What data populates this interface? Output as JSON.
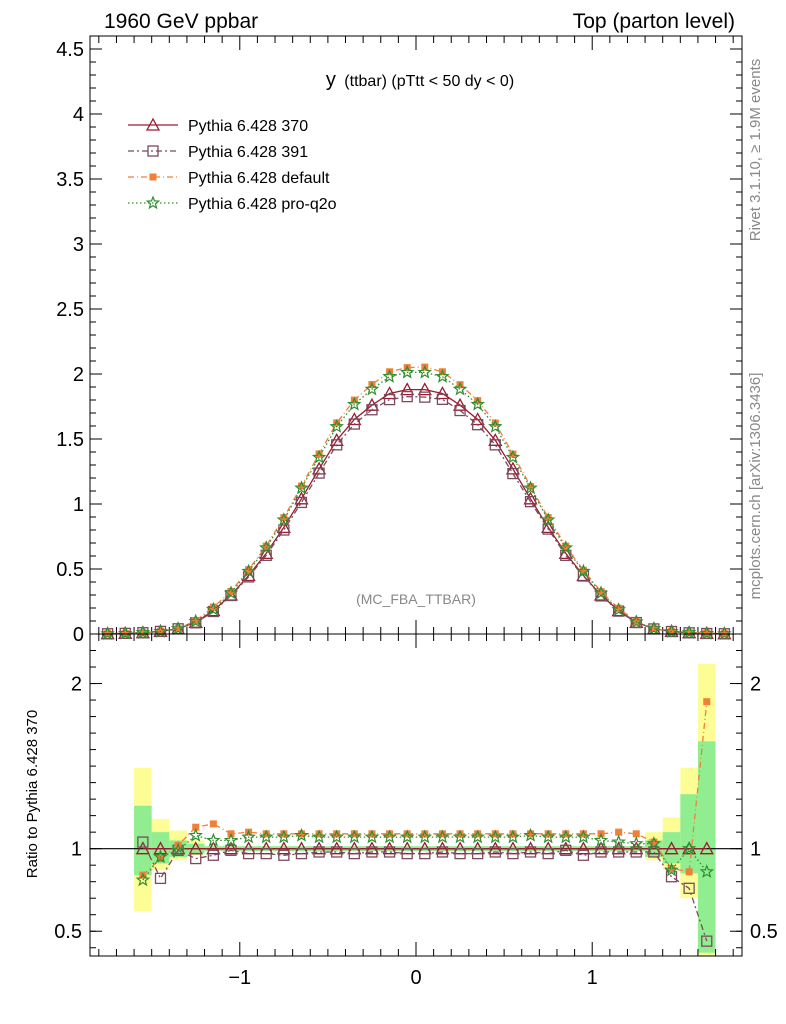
{
  "header": {
    "left": "1960 GeV ppbar",
    "right": "Top (parton level)"
  },
  "side_labels": {
    "rivet": "Rivet 3.1.10, ≥ 1.9M events",
    "mcplots": "mcplots.cern.ch [arXiv:1306.3436]"
  },
  "chart_data": {
    "type": "line",
    "title": "y (ttbar) (pTtt < 50 dy < 0)",
    "title_main": "y",
    "title_sub": "(ttbar) (pTtt < 50 dy < 0)",
    "watermark": "(MC_FBA_TTBAR)",
    "xlim": [
      -1.85,
      1.85
    ],
    "x_ticks": [
      -1,
      0,
      1
    ],
    "x_tick_labels": [
      "−1",
      "0",
      "1"
    ],
    "main": {
      "ylim": [
        0,
        4.6
      ],
      "y_ticks": [
        0,
        0.5,
        1,
        1.5,
        2,
        2.5,
        3,
        3.5,
        4,
        4.5
      ],
      "y_tick_labels": [
        "0",
        "0.5",
        "1",
        "1.5",
        "2",
        "2.5",
        "3",
        "3.5",
        "4",
        "4.5"
      ]
    },
    "ratio": {
      "ylabel": "Ratio to Pythia 6.428 370",
      "ylim": [
        0.35,
        2.3
      ],
      "y_ticks": [
        0.5,
        1,
        2
      ],
      "y_tick_labels": [
        "0.5",
        "1",
        "2"
      ]
    },
    "x": [
      -1.75,
      -1.65,
      -1.55,
      -1.45,
      -1.35,
      -1.25,
      -1.15,
      -1.05,
      -0.95,
      -0.85,
      -0.75,
      -0.65,
      -0.55,
      -0.45,
      -0.35,
      -0.25,
      -0.15,
      -0.05,
      0.05,
      0.15,
      0.25,
      0.35,
      0.45,
      0.55,
      0.65,
      0.75,
      0.85,
      0.95,
      1.05,
      1.15,
      1.25,
      1.35,
      1.45,
      1.55,
      1.65,
      1.75
    ],
    "band": {
      "x": [
        -1.55,
        -1.45,
        -1.35,
        -1.25,
        1.35,
        1.45,
        1.55,
        1.65
      ],
      "green": [
        [
          0.84,
          1.26
        ],
        [
          0.91,
          1.1
        ],
        [
          0.95,
          1.05
        ],
        [
          0.97,
          1.03
        ],
        [
          0.95,
          1.05
        ],
        [
          0.91,
          1.1
        ],
        [
          0.85,
          1.33
        ],
        [
          0.37,
          1.65
        ]
      ],
      "yellow": [
        [
          0.62,
          1.49
        ],
        [
          0.87,
          1.18
        ],
        [
          0.93,
          1.11
        ],
        [
          0.96,
          1.05
        ],
        [
          0.93,
          1.1
        ],
        [
          0.87,
          1.19
        ],
        [
          0.7,
          1.49
        ],
        [
          0.0,
          2.12
        ]
      ]
    },
    "series": [
      {
        "name": "Pythia 6.428 370",
        "color": "#9b1b30",
        "marker": "triangle-open",
        "dash": "",
        "values": [
          0.002,
          0.005,
          0.01,
          0.02,
          0.04,
          0.09,
          0.18,
          0.3,
          0.45,
          0.62,
          0.82,
          1.04,
          1.27,
          1.49,
          1.65,
          1.76,
          1.85,
          1.88,
          1.88,
          1.85,
          1.76,
          1.65,
          1.49,
          1.27,
          1.04,
          0.82,
          0.62,
          0.45,
          0.3,
          0.18,
          0.09,
          0.04,
          0.02,
          0.01,
          0.005,
          0.002
        ],
        "ratio": [
          null,
          null,
          1.0,
          1.0,
          1.0,
          1.0,
          1.0,
          1.0,
          1.0,
          1.0,
          1.0,
          1.0,
          1.0,
          1.0,
          1.0,
          1.0,
          1.0,
          1.0,
          1.0,
          1.0,
          1.0,
          1.0,
          1.0,
          1.0,
          1.0,
          1.0,
          1.0,
          1.0,
          1.0,
          1.0,
          1.0,
          1.0,
          1.0,
          1.0,
          1.0,
          null
        ]
      },
      {
        "name": "Pythia 6.428 391",
        "color": "#7b4a5e",
        "marker": "square-open",
        "dash": "6,3,2,3",
        "values": [
          0.002,
          0.005,
          0.01,
          0.02,
          0.04,
          0.086,
          0.173,
          0.296,
          0.439,
          0.605,
          0.8,
          1.012,
          1.238,
          1.455,
          1.615,
          1.725,
          1.803,
          1.826,
          1.822,
          1.805,
          1.719,
          1.61,
          1.455,
          1.234,
          1.018,
          0.807,
          0.605,
          0.446,
          0.293,
          0.176,
          0.088,
          0.039,
          0.019,
          0.009,
          0.004,
          0.002
        ],
        "ratio": [
          null,
          null,
          1.04,
          0.82,
          0.99,
          0.94,
          0.96,
          0.99,
          0.97,
          0.97,
          0.96,
          0.97,
          0.98,
          0.98,
          0.97,
          0.98,
          0.98,
          0.97,
          0.97,
          0.98,
          0.97,
          0.97,
          0.98,
          0.97,
          0.98,
          0.97,
          0.99,
          0.96,
          0.98,
          0.98,
          0.98,
          0.98,
          0.83,
          0.76,
          0.44,
          null
        ]
      },
      {
        "name": "Pythia 6.428 default",
        "color": "#f07f38",
        "marker": "square-filled",
        "dash": "6,3,1,3",
        "values": [
          0.002,
          0.004,
          0.01,
          0.02,
          0.041,
          0.102,
          0.207,
          0.327,
          0.495,
          0.676,
          0.895,
          1.138,
          1.385,
          1.624,
          1.799,
          1.919,
          2.017,
          2.049,
          2.053,
          2.017,
          1.918,
          1.795,
          1.623,
          1.384,
          1.135,
          0.895,
          0.676,
          0.49,
          0.326,
          0.198,
          0.098,
          0.041,
          0.018,
          0.009,
          0.009,
          0.002
        ],
        "ratio": [
          null,
          null,
          0.84,
          0.94,
          1.02,
          1.13,
          1.15,
          1.09,
          1.1,
          1.09,
          1.09,
          1.09,
          1.09,
          1.09,
          1.09,
          1.09,
          1.09,
          1.09,
          1.09,
          1.09,
          1.09,
          1.09,
          1.09,
          1.09,
          1.09,
          1.09,
          1.09,
          1.09,
          1.09,
          1.1,
          1.09,
          1.04,
          0.88,
          0.86,
          1.89,
          null
        ]
      },
      {
        "name": "Pythia 6.428 pro-q2o",
        "color": "#2f8f2f",
        "marker": "star",
        "dash": "1.5,2.5",
        "values": [
          0.002,
          0.004,
          0.01,
          0.019,
          0.04,
          0.097,
          0.189,
          0.315,
          0.482,
          0.663,
          0.878,
          1.123,
          1.359,
          1.595,
          1.766,
          1.883,
          1.98,
          2.012,
          2.012,
          1.98,
          1.883,
          1.766,
          1.595,
          1.359,
          1.123,
          0.878,
          0.663,
          0.482,
          0.315,
          0.187,
          0.093,
          0.041,
          0.018,
          0.01,
          0.004,
          0.002
        ],
        "ratio": [
          null,
          null,
          0.81,
          0.95,
          0.99,
          1.08,
          1.05,
          1.05,
          1.07,
          1.07,
          1.07,
          1.08,
          1.07,
          1.07,
          1.07,
          1.07,
          1.07,
          1.07,
          1.07,
          1.07,
          1.07,
          1.07,
          1.07,
          1.07,
          1.08,
          1.07,
          1.07,
          1.07,
          1.05,
          1.04,
          1.03,
          1.03,
          0.87,
          1.0,
          0.86,
          null
        ]
      }
    ]
  }
}
